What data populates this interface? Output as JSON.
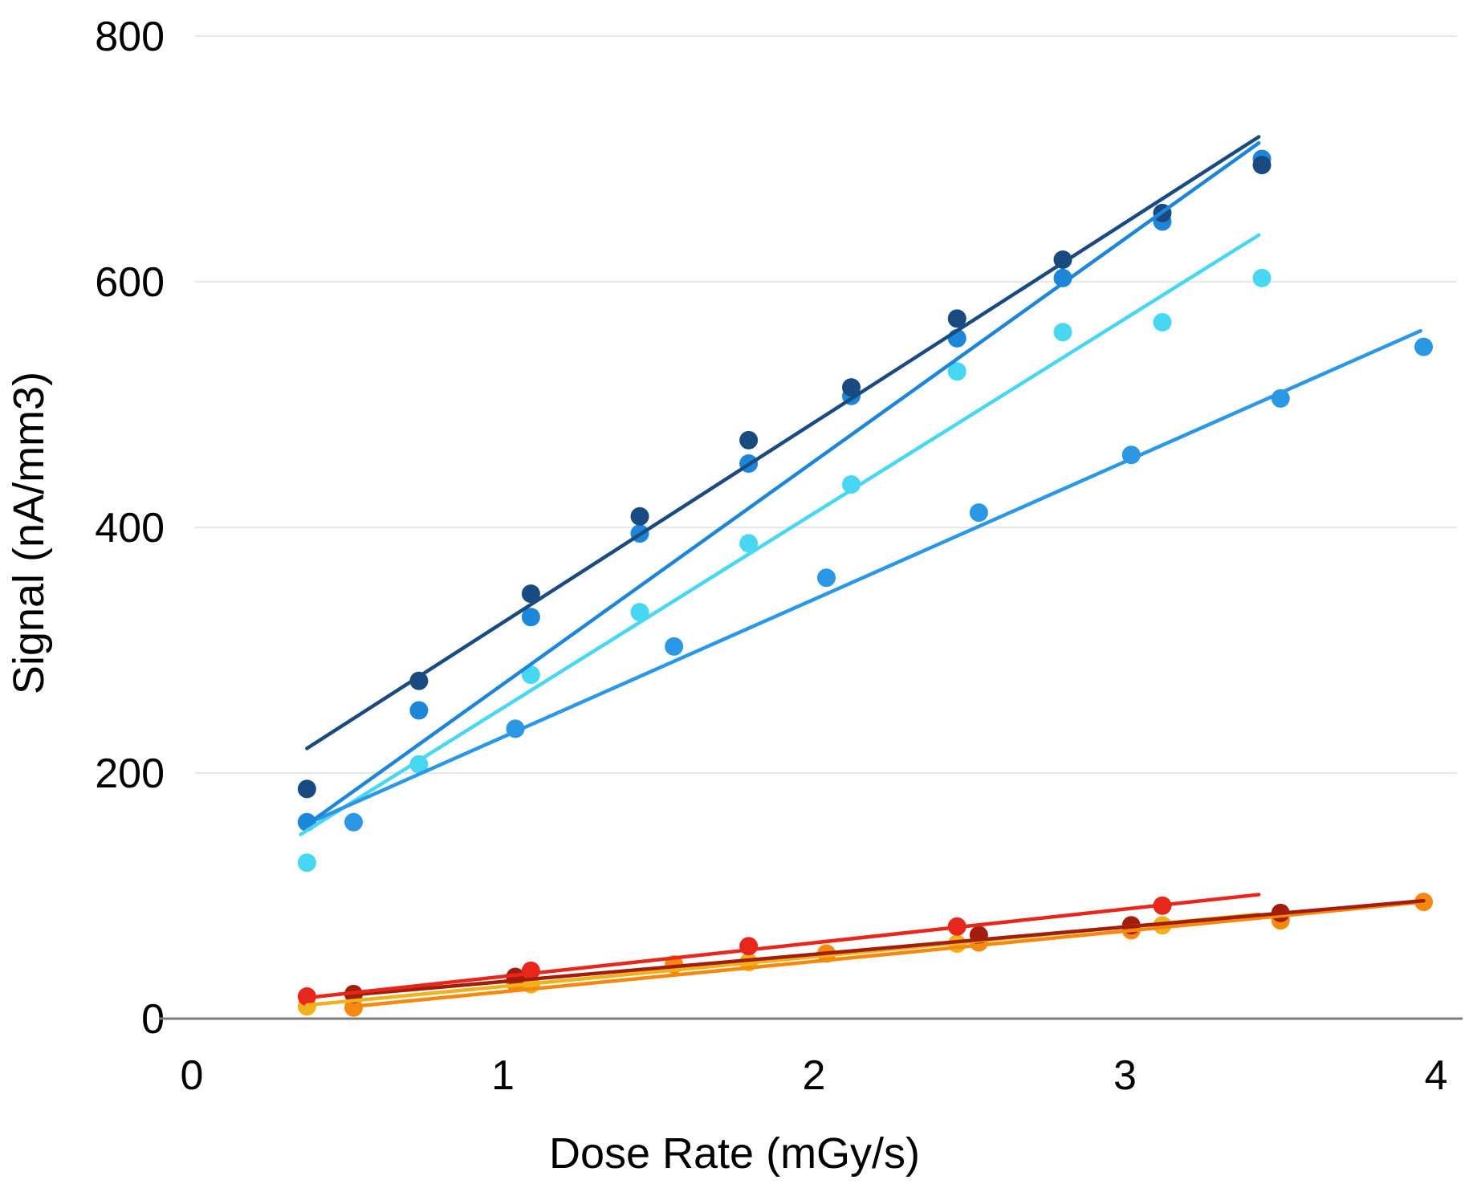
{
  "page": {
    "background": "#FFFFFF",
    "text_color": "#000000"
  },
  "chart_data": {
    "type": "scatter",
    "title": "",
    "xlabel": "Dose Rate (mGy/s)",
    "ylabel": "Signal (nA/mm3)",
    "x_ticks": [
      0,
      1,
      2,
      3,
      4
    ],
    "y_ticks": [
      0,
      200,
      400,
      600,
      800
    ],
    "xlim": [
      0,
      4.1
    ],
    "ylim": [
      0,
      830
    ],
    "grid": "horizontal-gridlines-only",
    "legend": "none",
    "axis_color": "#7C7C7C",
    "grid_color": "#E7E7E7",
    "tick_text_color": "#000000",
    "marker_shape": "circle",
    "series": [
      {
        "name": "cyan",
        "color": "#48D7F2",
        "points": [
          [
            0.37,
            127
          ],
          [
            0.73,
            207
          ],
          [
            1.09,
            280
          ],
          [
            1.44,
            331
          ],
          [
            1.79,
            387
          ],
          [
            2.12,
            435
          ],
          [
            2.46,
            527
          ],
          [
            2.8,
            559
          ],
          [
            3.12,
            567
          ],
          [
            3.44,
            603
          ]
        ],
        "trend": [
          [
            0.35,
            150
          ],
          [
            3.43,
            638
          ]
        ]
      },
      {
        "name": "light-blue",
        "color": "#2B97E5",
        "points": [
          [
            0.52,
            160
          ],
          [
            1.04,
            236
          ],
          [
            1.55,
            303
          ],
          [
            2.04,
            359
          ],
          [
            2.53,
            412
          ],
          [
            3.02,
            459
          ],
          [
            3.5,
            505
          ],
          [
            3.96,
            547
          ]
        ],
        "trend": [
          [
            0.4,
            162
          ],
          [
            3.95,
            560
          ]
        ]
      },
      {
        "name": "blue",
        "color": "#1E86D8",
        "points": [
          [
            0.37,
            160
          ],
          [
            0.73,
            251
          ],
          [
            1.09,
            327
          ],
          [
            1.44,
            395
          ],
          [
            1.79,
            452
          ],
          [
            2.12,
            507
          ],
          [
            2.46,
            554
          ],
          [
            2.8,
            603
          ],
          [
            3.12,
            649
          ],
          [
            3.44,
            700
          ]
        ],
        "trend": [
          [
            0.37,
            158
          ],
          [
            3.43,
            713
          ]
        ]
      },
      {
        "name": "dark-blue",
        "color": "#1A4B80",
        "points": [
          [
            0.37,
            187
          ],
          [
            0.73,
            275
          ],
          [
            1.09,
            346
          ],
          [
            1.44,
            409
          ],
          [
            1.79,
            471
          ],
          [
            2.12,
            514
          ],
          [
            2.46,
            570
          ],
          [
            2.8,
            618
          ],
          [
            3.12,
            656
          ],
          [
            3.44,
            695
          ]
        ],
        "trend": [
          [
            0.37,
            220
          ],
          [
            3.43,
            718
          ]
        ]
      },
      {
        "name": "yellow",
        "color": "#EFB21D",
        "points": [
          [
            0.37,
            10
          ],
          [
            1.09,
            28
          ],
          [
            1.79,
            46
          ],
          [
            2.46,
            61
          ],
          [
            3.12,
            76
          ]
        ],
        "trend": [
          [
            0.37,
            11
          ],
          [
            3.43,
            85
          ]
        ]
      },
      {
        "name": "orange",
        "color": "#F5890F",
        "points": [
          [
            0.52,
            9
          ],
          [
            1.04,
            29
          ],
          [
            1.55,
            44
          ],
          [
            2.04,
            53
          ],
          [
            2.53,
            62
          ],
          [
            3.02,
            72
          ],
          [
            3.5,
            80
          ],
          [
            3.96,
            95
          ]
        ],
        "trend": [
          [
            0.52,
            10
          ],
          [
            3.96,
            95
          ]
        ]
      },
      {
        "name": "dark-red",
        "color": "#A31D0D",
        "points": [
          [
            0.52,
            20
          ],
          [
            1.04,
            34
          ],
          [
            2.53,
            68
          ],
          [
            3.02,
            76
          ],
          [
            3.5,
            86
          ]
        ],
        "trend": [
          [
            0.5,
            19
          ],
          [
            3.96,
            96
          ]
        ]
      },
      {
        "name": "red",
        "color": "#E8271C",
        "points": [
          [
            0.37,
            18
          ],
          [
            1.09,
            39
          ],
          [
            1.79,
            59
          ],
          [
            2.46,
            75
          ],
          [
            3.12,
            92
          ]
        ],
        "trend": [
          [
            0.37,
            17
          ],
          [
            3.43,
            101
          ]
        ]
      }
    ]
  }
}
